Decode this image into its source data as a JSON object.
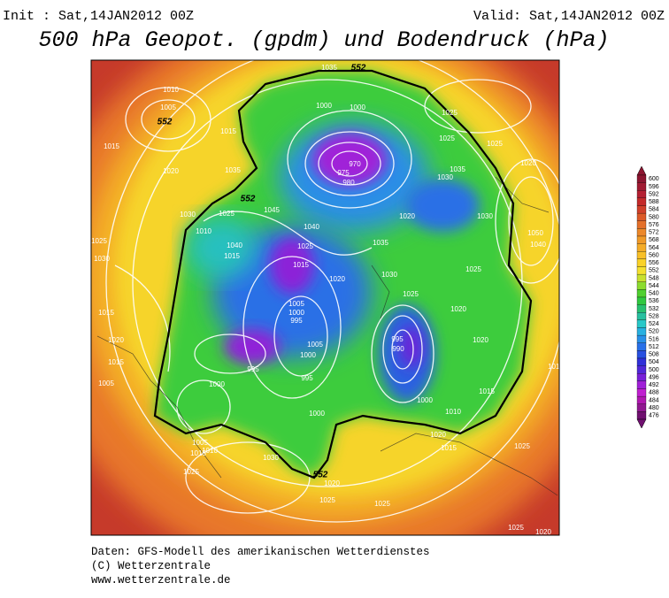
{
  "header": {
    "init": "Init : Sat,14JAN2012 00Z",
    "valid": "Valid: Sat,14JAN2012 00Z",
    "title": "500 hPa Geopot. (gpdm) und Bodendruck (hPa)"
  },
  "colorbar": {
    "levels": [
      600,
      596,
      592,
      588,
      584,
      580,
      576,
      572,
      568,
      564,
      560,
      556,
      552,
      548,
      544,
      540,
      536,
      532,
      528,
      524,
      520,
      516,
      512,
      508,
      504,
      500,
      496,
      492,
      488,
      484,
      480,
      476
    ],
    "colors": [
      "#8c1530",
      "#a01a32",
      "#b42032",
      "#c42a2a",
      "#d0402a",
      "#dc5a28",
      "#e4702a",
      "#ec882a",
      "#f09a28",
      "#f4ac28",
      "#f8c028",
      "#fad228",
      "#f4e030",
      "#c8e030",
      "#8cdc30",
      "#50d030",
      "#30c840",
      "#28c070",
      "#28c0a0",
      "#28c8c8",
      "#28b0e0",
      "#2890e8",
      "#2870e8",
      "#2850e0",
      "#3030d8",
      "#5028d8",
      "#7820d8",
      "#a020d8",
      "#c020d0",
      "#b018b0",
      "#901890",
      "#701070"
    ]
  },
  "map": {
    "labels": [
      "1035",
      "552",
      "1010",
      "1005",
      "552",
      "1000",
      "1000",
      "1025",
      "1015",
      "1015",
      "1020",
      "1035",
      "970",
      "975",
      "980",
      "1025",
      "1025",
      "1035",
      "1030",
      "1020",
      "552",
      "1045",
      "1025",
      "1030",
      "1040",
      "1010",
      "1035",
      "1025",
      "1030",
      "1040",
      "1015",
      "1025",
      "1015",
      "1020",
      "1030",
      "1025",
      "1005",
      "1000",
      "995",
      "1015",
      "1020",
      "995",
      "990",
      "1020",
      "1015",
      "1010",
      "1015",
      "1005",
      "995",
      "1005",
      "1000",
      "995",
      "1000",
      "1000",
      "1030",
      "1020",
      "1015",
      "552",
      "1020",
      "1025",
      "1025",
      "1025",
      "1025",
      "1025",
      "1020",
      "1005",
      "1010",
      "1015",
      "1010",
      "1000",
      "1020",
      "1025",
      "1020",
      "1030",
      "1050",
      "1040"
    ]
  },
  "footer": {
    "lines": [
      "Daten: GFS-Modell des amerikanischen Wetterdienstes",
      "(C) Wetterzentrale",
      "www.wetterzentrale.de"
    ]
  }
}
